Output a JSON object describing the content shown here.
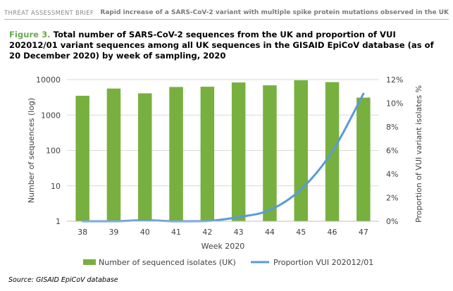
{
  "header": {
    "left": "THREAT ASSESSMENT BRIEF",
    "right": "Rapid increase of a SARS-CoV-2 variant with multiple spike protein mutations observed in the UK"
  },
  "figure": {
    "label": "Figure 3.",
    "title": "Total number of SARS-CoV-2 sequences from the UK and proportion of VUI 202012/01 variant sequences among all UK sequences in the GISAID EpiCoV database (as of 20 December 2020) by week of sampling, 2020"
  },
  "source": "Source: GISAID EpiCoV database",
  "colors": {
    "bar": "#77b03f",
    "line": "#5b9bd5",
    "figure_label": "#6aa84f"
  },
  "chart_data": {
    "type": "bar",
    "categories": [
      "38",
      "39",
      "40",
      "41",
      "42",
      "43",
      "44",
      "45",
      "46",
      "47"
    ],
    "xlabel": "Week 2020",
    "ylabel": "Number of sequences (log)",
    "y2label": "Proportion of VUI variant isolates %",
    "yscale": "log",
    "ylim": [
      1,
      10000
    ],
    "yticks": [
      "1",
      "10",
      "100",
      "1000",
      "10000"
    ],
    "y2lim": [
      0,
      12
    ],
    "y2ticks": [
      "0%",
      "2%",
      "4%",
      "6%",
      "8%",
      "10%",
      "12%"
    ],
    "series": [
      {
        "name": "Number of sequenced isolates (UK)",
        "type": "bar",
        "axis": "left",
        "values": [
          3500,
          5600,
          4100,
          6200,
          6300,
          8300,
          6900,
          9600,
          8500,
          3100
        ]
      },
      {
        "name": "Proportion VUI 202012/01",
        "type": "line",
        "axis": "right",
        "values": [
          0.0,
          0.0,
          0.08,
          0.0,
          0.02,
          0.35,
          0.95,
          2.7,
          5.9,
          10.8
        ]
      }
    ],
    "legend": "bottom"
  }
}
